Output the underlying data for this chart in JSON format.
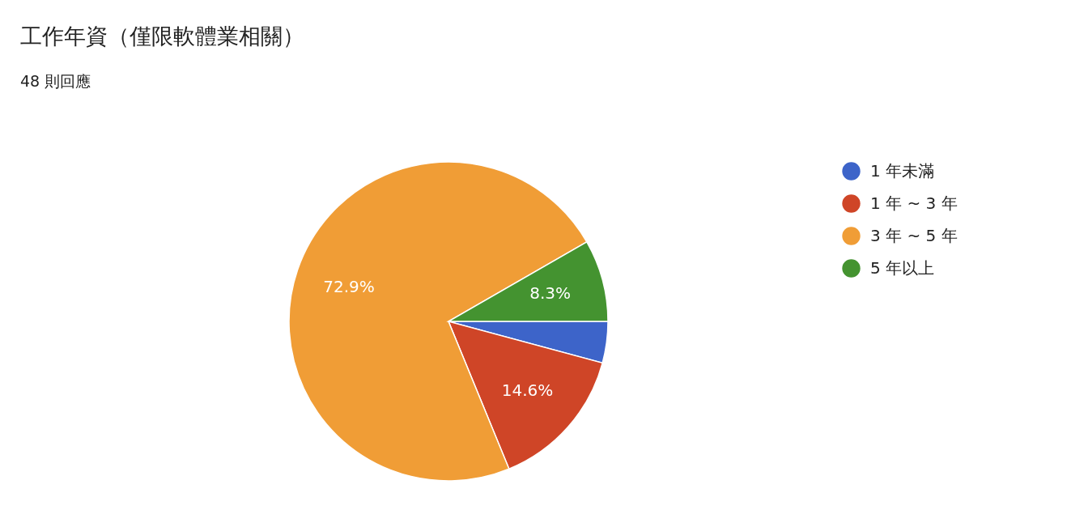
{
  "chart_data": {
    "type": "pie",
    "title": "工作年資（僅限軟體業相關）",
    "subtitle": "48 則回應",
    "categories": [
      "1 年未滿",
      "1 年 ~ 3 年",
      "3 年 ~ 5 年",
      "5 年以上"
    ],
    "values": [
      4.2,
      14.6,
      72.9,
      8.3
    ],
    "value_labels": [
      null,
      "14.6%",
      "72.9%",
      "8.3%"
    ],
    "colors": [
      "#3d64c9",
      "#cf4527",
      "#f09d36",
      "#449330"
    ],
    "legend": "right"
  }
}
